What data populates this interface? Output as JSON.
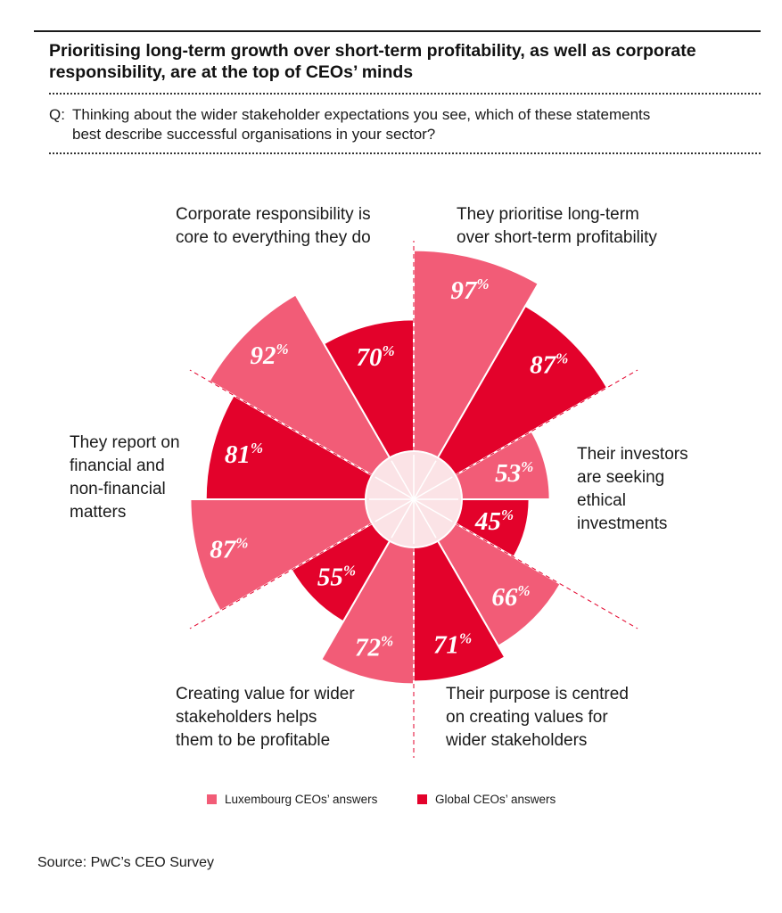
{
  "title": "Prioritising long-term growth over short-term profitability, as well as corporate responsibility, are at the top of CEOs’ minds",
  "question": {
    "prefix": "Q:",
    "line1": "Thinking about the wider stakeholder expectations you see, which of these statements",
    "line2": "best describe successful organisations in your sector?"
  },
  "colors": {
    "luxembourg": "#f25c77",
    "global": "#e3022b",
    "hub": "#fbe3e6",
    "guide": "#e3022b"
  },
  "chart_data": {
    "type": "polar-bar",
    "series": [
      {
        "name": "Luxembourg CEOs’ answers"
      },
      {
        "name": "Global CEOs’ answers"
      }
    ],
    "categories": [
      {
        "label_lines": [
          "They prioritise long-term",
          "over short-term profitability"
        ],
        "luxembourg": 97,
        "global": 87
      },
      {
        "label_lines": [
          "Their investors",
          "are seeking",
          "ethical",
          "investments"
        ],
        "luxembourg": 53,
        "global": 45
      },
      {
        "label_lines": [
          "Their purpose is centred",
          "on creating values for",
          "wider stakeholders"
        ],
        "luxembourg": 66,
        "global": 71
      },
      {
        "label_lines": [
          "Creating value for wider",
          "stakeholders helps",
          "them to be profitable"
        ],
        "luxembourg": 72,
        "global": 55
      },
      {
        "label_lines": [
          "They report on",
          "financial and",
          "non-financial",
          "matters"
        ],
        "luxembourg": 87,
        "global": 81
      },
      {
        "label_lines": [
          "Corporate responsibility is",
          "core to everything they do"
        ],
        "luxembourg": 92,
        "global": 70
      }
    ],
    "value_suffix": "%"
  },
  "legend": {
    "luxembourg": "Luxembourg CEOs’ answers",
    "global": "Global CEOs’ answers"
  },
  "source": "Source: PwC’s CEO Survey"
}
